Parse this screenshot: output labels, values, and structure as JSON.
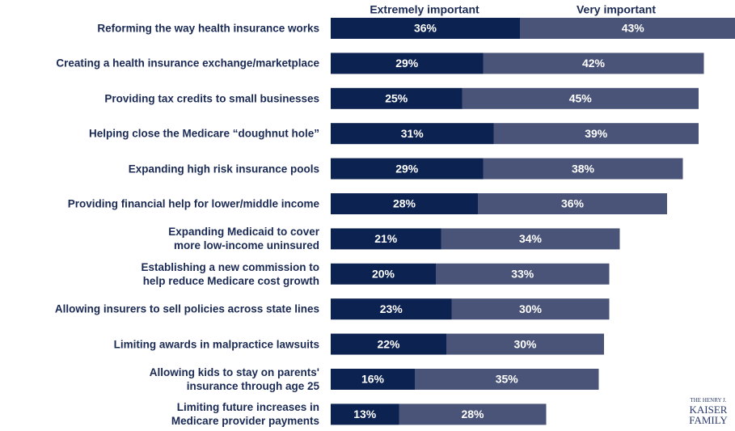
{
  "chart_data": {
    "type": "stacked-bar-horizontal",
    "categories": [
      "Reforming the way health insurance works",
      "Creating a health insurance exchange/marketplace",
      "Providing tax credits to small businesses",
      "Helping close the Medicare “doughnut hole”",
      "Expanding high risk insurance pools",
      "Providing financial help for lower/middle income",
      "Expanding Medicaid to cover\nmore low-income uninsured",
      "Establishing a new commission to\nhelp reduce Medicare cost growth",
      "Allowing insurers to sell policies across state lines",
      "Limiting awards in malpractice lawsuits",
      "Allowing kids to stay on parents'\ninsurance through age 25",
      "Limiting future increases in\nMedicare provider payments"
    ],
    "series": [
      {
        "name": "Extremely important",
        "color": "#0c2250",
        "values": [
          36,
          29,
          25,
          31,
          29,
          28,
          21,
          20,
          23,
          22,
          16,
          13
        ],
        "value_labels": [
          "36%",
          "29%",
          "25%",
          "31%",
          "29%",
          "28%",
          "21%",
          "20%",
          "23%",
          "22%",
          "16%",
          "13%"
        ]
      },
      {
        "name": "Very important",
        "color": "#4a5478",
        "values": [
          43,
          42,
          45,
          39,
          38,
          36,
          34,
          33,
          30,
          30,
          35,
          28
        ],
        "value_labels": [
          "43%",
          "42%",
          "45%",
          "39%",
          "38%",
          "36%",
          "34%",
          "33%",
          "30%",
          "30%",
          "35%",
          "28%"
        ]
      }
    ]
  },
  "logo": {
    "lines": [
      "THE HENRY J.",
      "KAISER",
      "FAMILY"
    ]
  }
}
